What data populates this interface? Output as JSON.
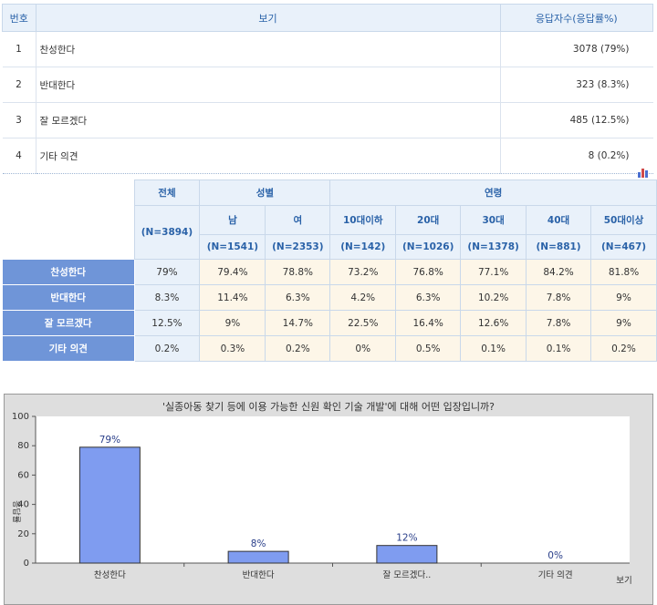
{
  "options_table": {
    "headers": {
      "number": "번호",
      "option": "보기",
      "count": "응답자수(응답률%)"
    },
    "rows": [
      {
        "number": "1",
        "option": "찬성한다",
        "count": "3078 (79%)"
      },
      {
        "number": "2",
        "option": "반대한다",
        "count": "323 (8.3%)"
      },
      {
        "number": "3",
        "option": "잘 모르겠다",
        "count": "485 (12.5%)"
      },
      {
        "number": "4",
        "option": "기타 의견",
        "count": "8 (0.2%)"
      }
    ]
  },
  "crosstab": {
    "total_label": "전체",
    "total_n": "(N=3894)",
    "gender_label": "성별",
    "age_label": "연령",
    "columns": [
      {
        "label": "남",
        "n": "(N=1541)"
      },
      {
        "label": "여",
        "n": "(N=2353)"
      },
      {
        "label": "10대이하",
        "n": "(N=142)"
      },
      {
        "label": "20대",
        "n": "(N=1026)"
      },
      {
        "label": "30대",
        "n": "(N=1378)"
      },
      {
        "label": "40대",
        "n": "(N=881)"
      },
      {
        "label": "50대이상",
        "n": "(N=467)"
      }
    ],
    "rows": [
      {
        "label": "찬성한다",
        "total": "79%",
        "values": [
          "79.4%",
          "78.8%",
          "73.2%",
          "76.8%",
          "77.1%",
          "84.2%",
          "81.8%"
        ]
      },
      {
        "label": "반대한다",
        "total": "8.3%",
        "values": [
          "11.4%",
          "6.3%",
          "4.2%",
          "6.3%",
          "10.2%",
          "7.8%",
          "9%"
        ]
      },
      {
        "label": "잘 모르겠다",
        "total": "12.5%",
        "values": [
          "9%",
          "14.7%",
          "22.5%",
          "16.4%",
          "12.6%",
          "7.8%",
          "9%"
        ]
      },
      {
        "label": "기타 의견",
        "total": "0.2%",
        "values": [
          "0.3%",
          "0.2%",
          "0%",
          "0.5%",
          "0.1%",
          "0.1%",
          "0.2%"
        ]
      }
    ]
  },
  "chart_data": {
    "type": "bar",
    "title": "'실종아동 찾기 등에 이용 가능한 신원 확인 기술 개발'에 대해 어떤 입장입니까?",
    "categories": [
      "찬성한다",
      "반대한다",
      "잘 모르겠다..",
      "기타 의견"
    ],
    "values": [
      79,
      8,
      12,
      0
    ],
    "data_labels": [
      "79%",
      "8%",
      "12%",
      "0%"
    ],
    "xlabel": "보기",
    "ylabel": "응답률",
    "ylim": [
      0,
      100
    ],
    "yticks": [
      "0",
      "20",
      "40",
      "60",
      "80",
      "100"
    ],
    "bar_color": "#7f9cf0",
    "grid": false,
    "legend": "none"
  }
}
